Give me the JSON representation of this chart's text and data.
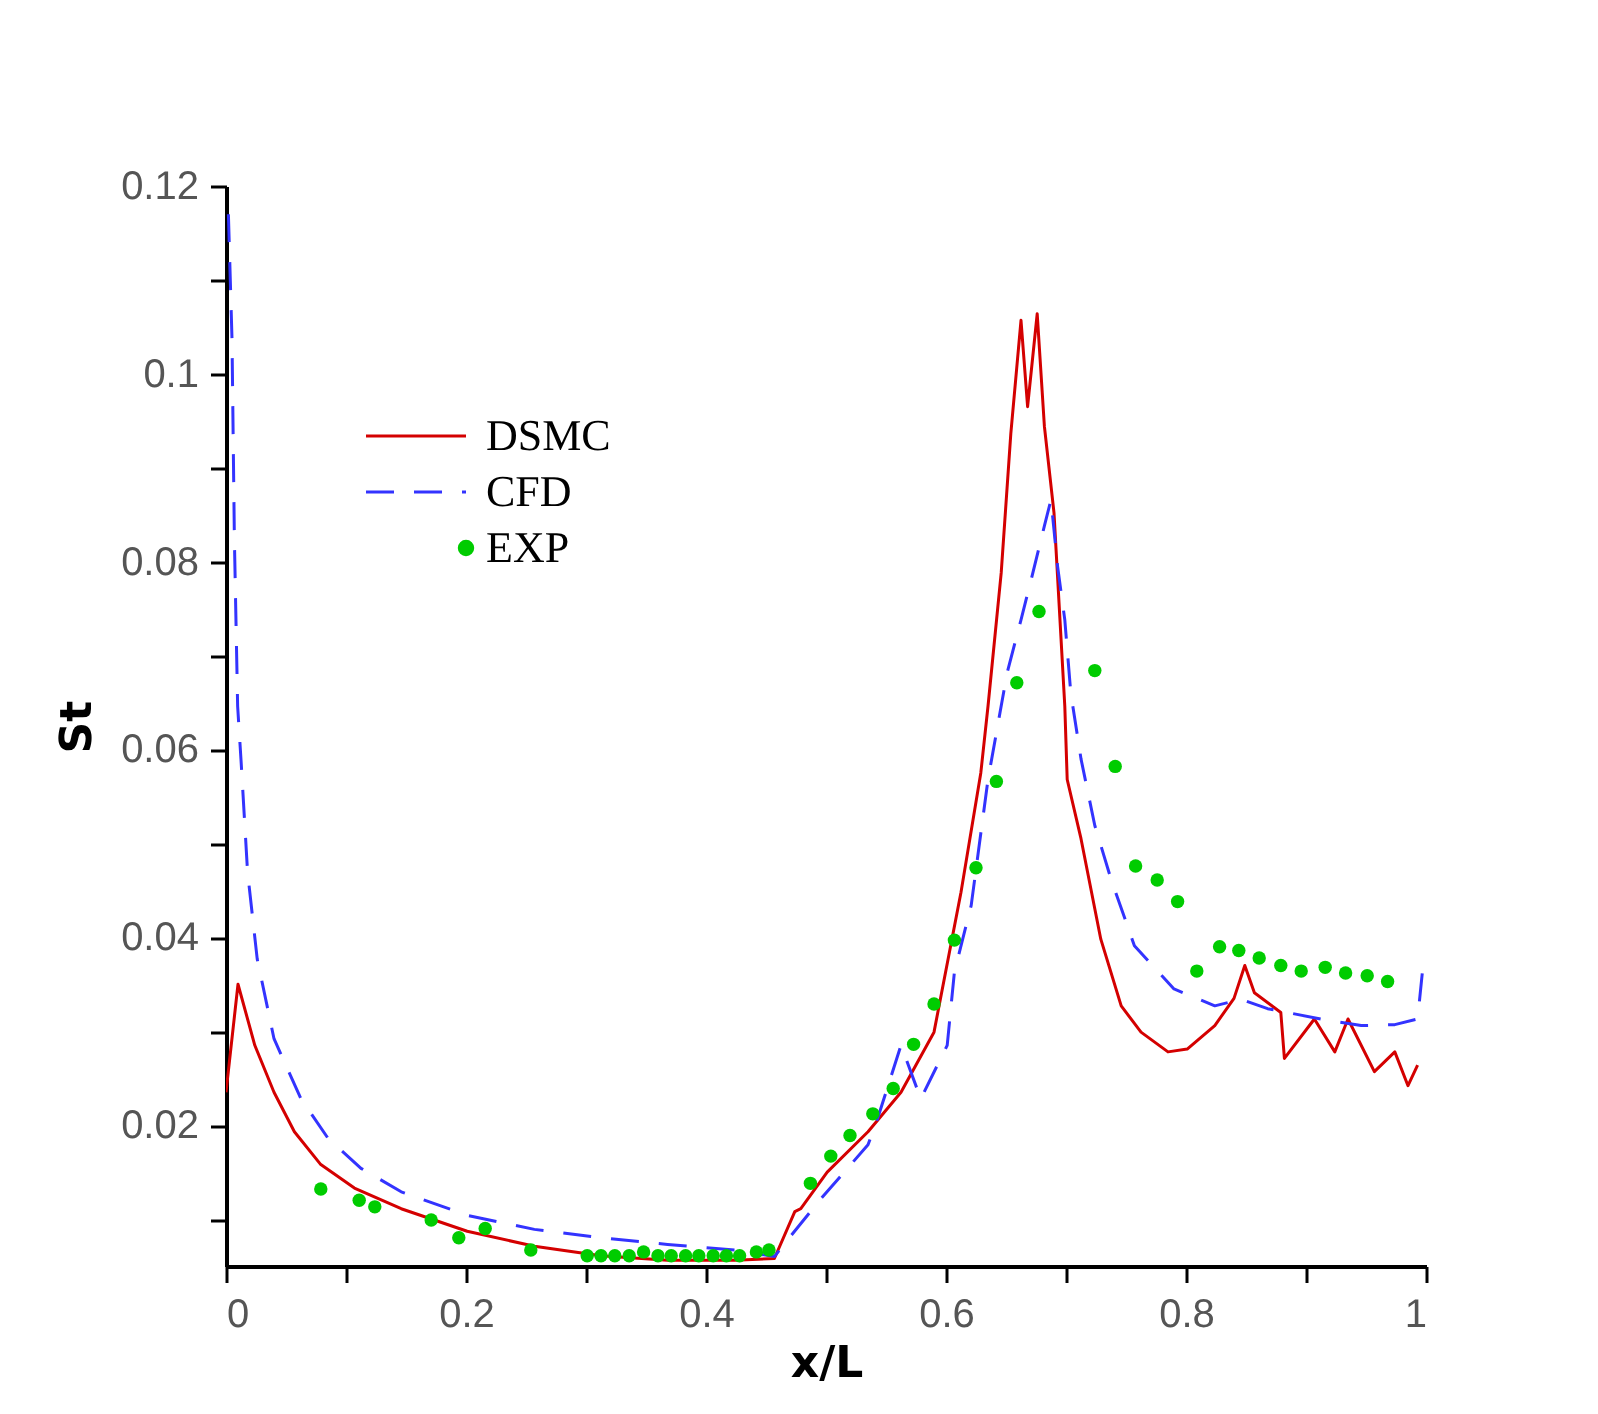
{
  "chart_data": {
    "type": "line",
    "xlabel": "x/L",
    "ylabel": "St",
    "xlim": [
      0,
      1
    ],
    "ylim": [
      0.005,
      0.12
    ],
    "xticks": [
      0,
      {
        "value": 0.1,
        "label": null
      },
      0.2,
      {
        "value": 0.3,
        "label": null
      },
      0.4,
      {
        "value": 0.5,
        "label": null
      },
      0.6,
      {
        "value": 0.7,
        "label": null
      },
      0.8,
      {
        "value": 0.9,
        "label": null
      },
      1
    ],
    "yticks": [
      {
        "value": 0.01,
        "label": null
      },
      0.02,
      {
        "value": 0.03,
        "label": null
      },
      0.04,
      {
        "value": 0.05,
        "label": null
      },
      0.06,
      {
        "value": 0.07,
        "label": null
      },
      0.08,
      {
        "value": 0.09,
        "label": null
      },
      0.1,
      {
        "value": 0.11,
        "label": null
      },
      0.12
    ],
    "grid": false,
    "legend": "top left",
    "series": [
      {
        "name": "DSMC",
        "color": "#d40000",
        "line_style": "solid",
        "marker": "none",
        "x": [
          0,
          0.01,
          0.024,
          0.04,
          0.057,
          0.079,
          0.107,
          0.146,
          0.201,
          0.257,
          0.3125,
          0.368,
          0.424,
          0.457,
          0.474,
          0.479,
          0.501,
          0.535,
          0.5625,
          0.59,
          0.6125,
          0.629,
          0.635,
          0.646,
          0.654,
          0.6625,
          0.668,
          0.676,
          0.682,
          0.69,
          0.699,
          0.701,
          0.7125,
          0.729,
          0.746,
          0.7625,
          0.785,
          0.801,
          0.824,
          0.84,
          0.849,
          0.857,
          0.879,
          0.882,
          0.907,
          0.924,
          0.935,
          0.957,
          0.974,
          0.985,
          0.993
        ],
        "values": [
          0.0235,
          0.035,
          0.0285,
          0.0235,
          0.0193,
          0.0158,
          0.0133,
          0.0111,
          0.0087,
          0.0071,
          0.0061,
          0.0056,
          0.0056,
          0.0058,
          0.0108,
          0.0111,
          0.015,
          0.0193,
          0.0235,
          0.0299,
          0.0448,
          0.0575,
          0.0646,
          0.0788,
          0.0936,
          0.1057,
          0.0965,
          0.1064,
          0.0944,
          0.0852,
          0.0646,
          0.0568,
          0.0505,
          0.0398,
          0.0327,
          0.0299,
          0.0278,
          0.0281,
          0.0306,
          0.0335,
          0.037,
          0.0341,
          0.032,
          0.0271,
          0.0313,
          0.0278,
          0.0313,
          0.0257,
          0.0278,
          0.0242,
          0.0264
        ]
      },
      {
        "name": "CFD",
        "color": "#3333ff",
        "line_style": "dashed",
        "marker": "none",
        "x": [
          0.002,
          0.005,
          0.007,
          0.0097,
          0.0125,
          0.018,
          0.026,
          0.04,
          0.0625,
          0.085,
          0.1125,
          0.146,
          0.201,
          0.257,
          0.3125,
          0.368,
          0.424,
          0.457,
          0.465,
          0.496,
          0.535,
          0.543,
          0.5625,
          0.579,
          0.601,
          0.607,
          0.621,
          0.635,
          0.651,
          0.6625,
          0.671,
          0.682,
          0.6875,
          0.693,
          0.699,
          0.704,
          0.7125,
          0.724,
          0.7375,
          0.757,
          0.79,
          0.824,
          0.846,
          0.868,
          0.9125,
          0.946,
          0.974,
          0.993,
          0.997
        ],
        "values": [
          0.117,
          0.1037,
          0.0823,
          0.0646,
          0.0589,
          0.0469,
          0.0377,
          0.0292,
          0.0228,
          0.0186,
          0.0154,
          0.0129,
          0.0104,
          0.0089,
          0.008,
          0.0073,
          0.0067,
          0.006,
          0.0073,
          0.0122,
          0.0179,
          0.0207,
          0.0285,
          0.0228,
          0.0285,
          0.0363,
          0.0434,
          0.0568,
          0.0682,
          0.0738,
          0.0781,
          0.0838,
          0.0866,
          0.0795,
          0.0738,
          0.066,
          0.059,
          0.0519,
          0.0462,
          0.0391,
          0.0345,
          0.0327,
          0.0334,
          0.0324,
          0.0313,
          0.0306,
          0.0307,
          0.0313,
          0.0363
        ]
      },
      {
        "name": "EXP",
        "type": "scatter",
        "color": "#00cc00",
        "marker": "circle",
        "x": [
          0.079,
          0.111,
          0.124,
          0.171,
          0.194,
          0.216,
          0.254,
          0.301,
          0.3125,
          0.324,
          0.336,
          0.348,
          0.36,
          0.371,
          0.383,
          0.394,
          0.406,
          0.417,
          0.428,
          0.442,
          0.4525,
          0.487,
          0.504,
          0.52,
          0.539,
          0.556,
          0.573,
          0.59,
          0.607,
          0.625,
          0.642,
          0.659,
          0.6775,
          0.724,
          0.741,
          0.758,
          0.776,
          0.793,
          0.809,
          0.828,
          0.844,
          0.861,
          0.879,
          0.896,
          0.916,
          0.933,
          0.951,
          0.968
        ],
        "values": [
          0.0132,
          0.012,
          0.0113,
          0.0099,
          0.008,
          0.009,
          0.0067,
          0.0061,
          0.0061,
          0.0061,
          0.0061,
          0.0065,
          0.0061,
          0.0061,
          0.0061,
          0.0061,
          0.0061,
          0.0061,
          0.0061,
          0.0065,
          0.0067,
          0.0138,
          0.0167,
          0.0189,
          0.0212,
          0.0239,
          0.0286,
          0.0329,
          0.0397,
          0.0474,
          0.0566,
          0.0671,
          0.0747,
          0.0684,
          0.0582,
          0.0476,
          0.0461,
          0.0438,
          0.0364,
          0.039,
          0.0386,
          0.0378,
          0.037,
          0.0364,
          0.0368,
          0.0362,
          0.0359,
          0.0353
        ]
      }
    ]
  }
}
